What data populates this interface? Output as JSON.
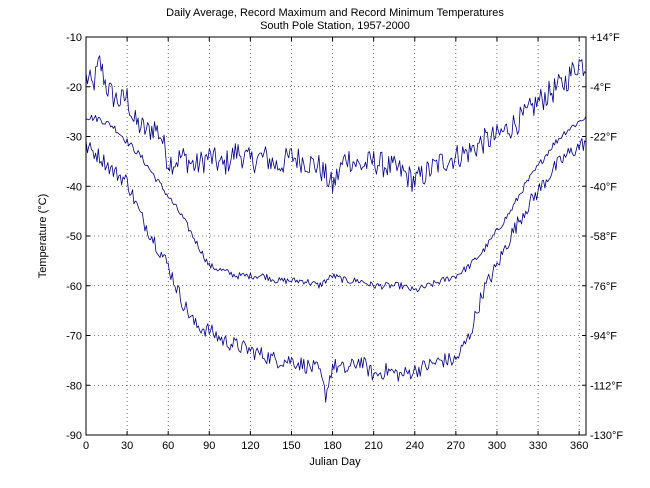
{
  "chart_data": {
    "type": "line",
    "title": "Daily Average, Record Maximum and Record Minimum Temperatures",
    "subtitle": "South Pole Station, 1957-2000",
    "xlabel": "Julian Day",
    "ylabel": "Temperature (°C)",
    "xlim": [
      0,
      365
    ],
    "ylim": [
      -90,
      -10
    ],
    "grid": true,
    "xticks": [
      "0",
      "30",
      "60",
      "90",
      "120",
      "150",
      "180",
      "210",
      "240",
      "270",
      "300",
      "330",
      "360"
    ],
    "yticks_left": [
      "-10",
      "-20",
      "-30",
      "-40",
      "-50",
      "-60",
      "-70",
      "-80",
      "-90"
    ],
    "yticks_right": [
      "+14°F",
      "-4°F",
      "-22°F",
      "-40°F",
      "-58°F",
      "-76°F",
      "-94°F",
      "-112°F",
      "-130°F"
    ],
    "series": [
      {
        "role": "record-maximum",
        "color": "#00008b",
        "x": [
          0,
          5,
          10,
          15,
          20,
          25,
          30,
          35,
          40,
          45,
          50,
          55,
          60,
          65,
          70,
          80,
          90,
          100,
          110,
          120,
          130,
          140,
          150,
          160,
          170,
          180,
          190,
          200,
          210,
          220,
          230,
          240,
          250,
          260,
          270,
          280,
          290,
          300,
          310,
          320,
          330,
          340,
          350,
          355,
          360,
          365
        ],
        "y": [
          -18,
          -20,
          -15,
          -20,
          -22,
          -23,
          -22,
          -27,
          -28,
          -29,
          -28,
          -30,
          -35,
          -35,
          -34,
          -36,
          -34,
          -36,
          -33,
          -35,
          -34,
          -36,
          -34,
          -35,
          -36,
          -40,
          -34,
          -36,
          -35,
          -36,
          -37,
          -39,
          -37,
          -35,
          -34,
          -33,
          -31,
          -30,
          -28,
          -26,
          -23,
          -21,
          -19,
          -17,
          -15,
          -16
        ]
      },
      {
        "role": "daily-average",
        "color": "#00008b",
        "x": [
          0,
          10,
          20,
          30,
          40,
          50,
          60,
          70,
          80,
          90,
          100,
          110,
          120,
          130,
          140,
          150,
          160,
          170,
          180,
          190,
          200,
          210,
          220,
          230,
          240,
          250,
          260,
          270,
          280,
          290,
          300,
          310,
          320,
          330,
          340,
          350,
          360,
          365
        ],
        "y": [
          -26,
          -26.5,
          -28,
          -31,
          -34,
          -38,
          -42,
          -46,
          -51,
          -56,
          -57,
          -58,
          -58,
          -58,
          -59,
          -59,
          -59,
          -60,
          -58,
          -59,
          -59,
          -60,
          -60,
          -60,
          -61,
          -60,
          -59,
          -58,
          -56,
          -53,
          -49,
          -45,
          -40,
          -36,
          -32,
          -29,
          -27,
          -26
        ]
      },
      {
        "role": "record-minimum",
        "color": "#00008b",
        "x": [
          0,
          10,
          20,
          30,
          40,
          50,
          60,
          70,
          80,
          90,
          100,
          110,
          120,
          130,
          140,
          150,
          160,
          170,
          175,
          180,
          190,
          200,
          210,
          220,
          230,
          240,
          250,
          260,
          270,
          280,
          290,
          300,
          310,
          320,
          330,
          340,
          350,
          360,
          365
        ],
        "y": [
          -32,
          -34,
          -37,
          -39,
          -46,
          -51,
          -56,
          -63,
          -68,
          -69,
          -71,
          -72,
          -73,
          -74,
          -75,
          -75,
          -76,
          -77,
          -82,
          -76,
          -77,
          -75,
          -78,
          -77,
          -78,
          -77,
          -76,
          -75,
          -75,
          -70,
          -61,
          -56,
          -50,
          -45,
          -41,
          -37,
          -34,
          -32,
          -31
        ]
      }
    ]
  }
}
